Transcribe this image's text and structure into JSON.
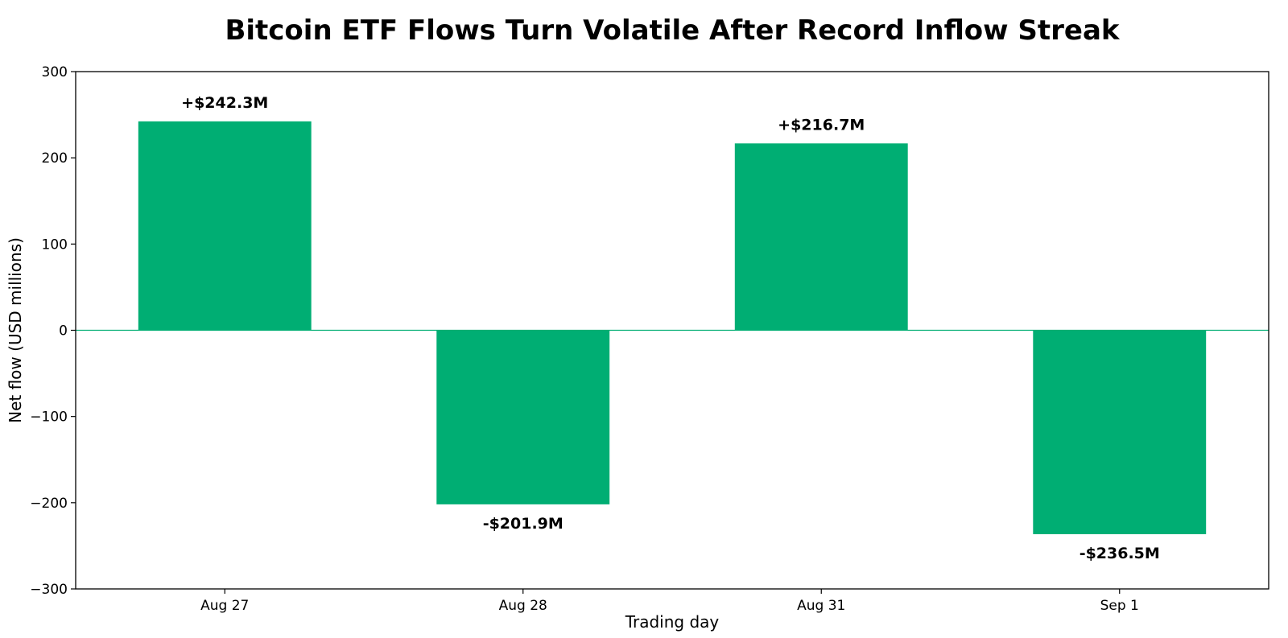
{
  "chart_data": {
    "type": "bar",
    "title": "Bitcoin ETF Flows Turn Volatile After Record Inflow Streak",
    "xlabel": "Trading day",
    "ylabel": "Net flow (USD millions)",
    "categories": [
      "Aug 27",
      "Aug 28",
      "Aug 31",
      "Sep 1"
    ],
    "values": [
      242.3,
      -201.9,
      216.7,
      -236.5
    ],
    "data_labels": [
      "+$242.3M",
      "-$201.9M",
      "+$216.7M",
      "-$236.5M"
    ],
    "ylim": [
      -300,
      300
    ],
    "yticks": [
      300,
      200,
      100,
      0,
      -100,
      -200,
      -300
    ],
    "ytick_labels": [
      "300",
      "200",
      "100",
      "0",
      "−100",
      "−200",
      "−300"
    ],
    "grid": false,
    "bar_color": "#00ae73",
    "zero_line_color": "#00ae73"
  }
}
